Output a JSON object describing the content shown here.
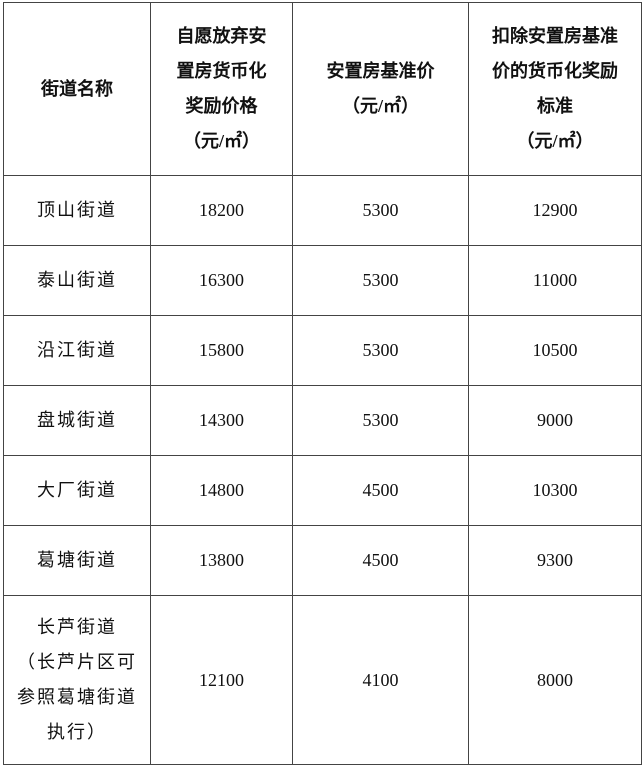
{
  "table": {
    "headers": [
      [
        "街道名称"
      ],
      [
        "自愿放弃安",
        "置房货币化",
        "奖励价格",
        "（元/㎡）"
      ],
      [
        "安置房基准价",
        "（元/㎡）"
      ],
      [
        "扣除安置房基准",
        "价的货币化奖励",
        "标准",
        "（元/㎡）"
      ]
    ],
    "rows": [
      {
        "name": [
          "顶山街道"
        ],
        "reward": "18200",
        "base": "5300",
        "net": "12900"
      },
      {
        "name": [
          "泰山街道"
        ],
        "reward": "16300",
        "base": "5300",
        "net": "11000"
      },
      {
        "name": [
          "沿江街道"
        ],
        "reward": "15800",
        "base": "5300",
        "net": "10500"
      },
      {
        "name": [
          "盘城街道"
        ],
        "reward": "14300",
        "base": "5300",
        "net": "9000"
      },
      {
        "name": [
          "大厂街道"
        ],
        "reward": "14800",
        "base": "4500",
        "net": "10300"
      },
      {
        "name": [
          "葛塘街道"
        ],
        "reward": "13800",
        "base": "4500",
        "net": "9300"
      },
      {
        "name": [
          "长芦街道",
          "（长芦片区可",
          "参照葛塘街道",
          "执行）"
        ],
        "reward": "12100",
        "base": "4100",
        "net": "8000"
      }
    ]
  }
}
